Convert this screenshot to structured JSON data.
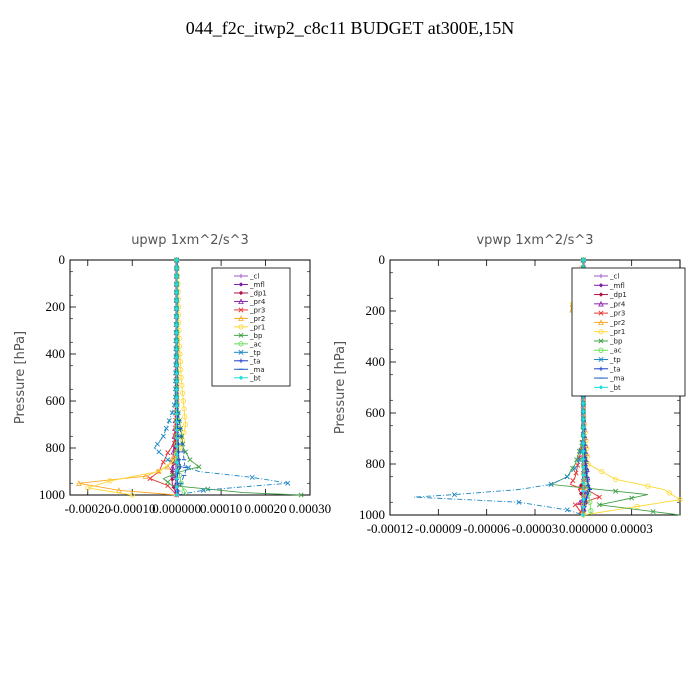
{
  "page": {
    "title": "044_f2c_itwp2_c8c11  BUDGET at300E,15N"
  },
  "legend": [
    {
      "label": "_cl",
      "color": "#9b59c6",
      "marker": "plus"
    },
    {
      "label": "_mfl",
      "color": "#7b1fa2",
      "marker": "diamond"
    },
    {
      "label": "_dp1",
      "color": "#b0124a",
      "marker": "diamond"
    },
    {
      "label": "_pr4",
      "color": "#8e24aa",
      "marker": "tri"
    },
    {
      "label": "_pr3",
      "color": "#e53935",
      "marker": "x"
    },
    {
      "label": "_pr2",
      "color": "#f9a825",
      "marker": "tri"
    },
    {
      "label": "_pr1",
      "color": "#fdd835",
      "marker": "circle"
    },
    {
      "label": "_bp",
      "color": "#43a047",
      "marker": "x"
    },
    {
      "label": "_ac",
      "color": "#66dd55",
      "marker": "circle"
    },
    {
      "label": "_tp",
      "color": "#1e88c5",
      "marker": "x"
    },
    {
      "label": "_ta",
      "color": "#1a3fcc",
      "marker": "plus"
    },
    {
      "label": "_ma",
      "color": "#1e5fc5",
      "marker": "line"
    },
    {
      "label": "_bt",
      "color": "#22dddd",
      "marker": "diamond"
    }
  ],
  "chart_data": [
    {
      "type": "line",
      "title": "upwp   1xm^2/s^3",
      "ylabel": "Pressure [hPa]",
      "xlabel": "",
      "xlim": [
        -0.00024,
        0.0003
      ],
      "ylim": [
        1000,
        0
      ],
      "xticks": [
        -0.0002,
        -0.0001,
        0.0,
        0.0001,
        0.0002,
        0.0003
      ],
      "xtick_labels": [
        "-0.00020",
        "-0.00010",
        "0.000000",
        "0.00010",
        "0.00020",
        "0.00030"
      ],
      "yticks": [
        0,
        200,
        400,
        600,
        800,
        1000
      ],
      "ytick_labels": [
        "0",
        "200",
        "400",
        "600",
        "800",
        "1000"
      ],
      "legend_position": "top-right",
      "series": [
        {
          "name": "_cl",
          "p": [
            0,
            200,
            400,
            600,
            800,
            950,
            1000
          ],
          "v": [
            0,
            0,
            0,
            0,
            0,
            0,
            0
          ]
        },
        {
          "name": "_mfl",
          "p": [
            0,
            200,
            400,
            600,
            800,
            950,
            1000
          ],
          "v": [
            0,
            0,
            0,
            0,
            0,
            0,
            0
          ]
        },
        {
          "name": "_dp1",
          "p": [
            0,
            400,
            700,
            850,
            900,
            950,
            1000
          ],
          "v": [
            0,
            0,
            0,
            -5e-06,
            -1e-05,
            -1e-05,
            0
          ]
        },
        {
          "name": "_pr4",
          "p": [
            0,
            600,
            900,
            950,
            1000
          ],
          "v": [
            0,
            0,
            -1e-05,
            0,
            0
          ]
        },
        {
          "name": "_pr3",
          "p": [
            0,
            600,
            780,
            820,
            860,
            900,
            930,
            960,
            980,
            1000
          ],
          "v": [
            0,
            0,
            -5e-06,
            -2e-05,
            -3e-05,
            -4e-05,
            -6e-05,
            -2e-05,
            -1e-05,
            0
          ]
        },
        {
          "name": "_pr2",
          "p": [
            0,
            600,
            800,
            880,
            920,
            950,
            980,
            1000
          ],
          "v": [
            0,
            0,
            3e-06,
            -2e-05,
            -7e-05,
            -0.00022,
            -0.00013,
            0
          ]
        },
        {
          "name": "_pr1",
          "p": [
            0,
            100,
            300,
            500,
            700,
            800,
            860,
            900,
            940,
            970,
            1000
          ],
          "v": [
            0,
            3e-06,
            5e-06,
            1e-05,
            2e-05,
            1e-05,
            -1e-05,
            -4e-05,
            -0.00015,
            -0.0002,
            -0.0001
          ]
        },
        {
          "name": "_bp",
          "p": [
            0,
            600,
            800,
            850,
            880,
            900,
            930,
            960,
            990,
            1000
          ],
          "v": [
            0,
            0,
            1.5e-05,
            3e-05,
            5e-05,
            1e-05,
            -3e-05,
            -1e-05,
            0.00015,
            0.00028
          ]
        },
        {
          "name": "_ac",
          "p": [
            0,
            800,
            900,
            950,
            1000
          ],
          "v": [
            0,
            0,
            5e-06,
            1e-05,
            2e-05
          ]
        },
        {
          "name": "_tp",
          "p": [
            0,
            600,
            650,
            700,
            750,
            800,
            850,
            900,
            925,
            940,
            950,
            965,
            980,
            1000
          ],
          "v": [
            0,
            -3e-06,
            -1e-05,
            -2e-05,
            -3e-05,
            -5e-05,
            -2e-05,
            5e-05,
            0.00017,
            0.00022,
            0.00025,
            0.00015,
            6e-05,
            0
          ]
        },
        {
          "name": "_ta",
          "p": [
            0,
            600,
            850,
            880,
            910,
            950,
            1000
          ],
          "v": [
            0,
            0,
            5e-06,
            8e-06,
            2e-06,
            0,
            0
          ]
        },
        {
          "name": "_ma",
          "p": [
            0,
            600,
            900,
            950,
            1000
          ],
          "v": [
            0,
            0,
            2e-05,
            1e-05,
            0
          ]
        },
        {
          "name": "_bt",
          "p": [
            0,
            500,
            1000
          ],
          "v": [
            0,
            0,
            0
          ]
        }
      ]
    },
    {
      "type": "line",
      "title": "vpwp   1xm^2/s^3",
      "ylabel": "Pressure [hPa]",
      "xlabel": "",
      "xlim": [
        -0.00012,
        6e-05
      ],
      "ylim": [
        1000,
        0
      ],
      "xticks": [
        -0.00012,
        -9e-05,
        -6e-05,
        -3e-05,
        0.0,
        3e-05
      ],
      "xtick_labels": [
        "-0.00012",
        "-0.00009",
        "-0.00006",
        "-0.00003",
        "0.000000",
        "0.00003"
      ],
      "yticks": [
        0,
        200,
        400,
        600,
        800,
        1000
      ],
      "ytick_labels": [
        "0",
        "200",
        "400",
        "600",
        "800",
        "1000"
      ],
      "legend_position": "top-right",
      "series": [
        {
          "name": "_cl",
          "p": [
            0,
            200,
            400,
            600,
            800,
            950,
            1000
          ],
          "v": [
            0,
            0,
            0,
            0,
            0,
            0,
            0
          ]
        },
        {
          "name": "_mfl",
          "p": [
            0,
            200,
            400,
            600,
            800,
            950,
            1000
          ],
          "v": [
            0,
            0,
            0,
            0,
            0,
            0,
            0
          ]
        },
        {
          "name": "_dp1",
          "p": [
            0,
            600,
            850,
            900,
            950,
            1000
          ],
          "v": [
            0,
            0,
            2e-06,
            -3e-06,
            2e-06,
            0
          ]
        },
        {
          "name": "_pr4",
          "p": [
            0,
            600,
            900,
            950,
            1000
          ],
          "v": [
            0,
            0,
            3e-06,
            -2e-06,
            0
          ]
        },
        {
          "name": "_pr3",
          "p": [
            0,
            700,
            850,
            880,
            910,
            930,
            960,
            1000
          ],
          "v": [
            0,
            0,
            -5e-06,
            -8e-06,
            5e-06,
            1e-05,
            -5e-06,
            0
          ]
        },
        {
          "name": "_pr2",
          "p": [
            0,
            100,
            150,
            180,
            210,
            250,
            400,
            600,
            800,
            1000
          ],
          "v": [
            0,
            0,
            -3e-06,
            -8e-06,
            -6e-06,
            -2e-06,
            0,
            0,
            0,
            0
          ]
        },
        {
          "name": "_pr1",
          "p": [
            0,
            150,
            170,
            200,
            230,
            600,
            800,
            860,
            900,
            940,
            980,
            1000
          ],
          "v": [
            0,
            -5e-06,
            -8e-06,
            -4e-06,
            0,
            0,
            3e-06,
            2e-05,
            5e-05,
            6e-05,
            2e-05,
            0
          ]
        },
        {
          "name": "_bp",
          "p": [
            0,
            700,
            800,
            850,
            880,
            920,
            960,
            1000
          ],
          "v": [
            0,
            0,
            -5e-06,
            -1e-05,
            -2e-05,
            4e-05,
            1e-05,
            6e-05
          ]
        },
        {
          "name": "_ac",
          "p": [
            0,
            800,
            900,
            1000
          ],
          "v": [
            0,
            0,
            3e-06,
            5e-06
          ]
        },
        {
          "name": "_tp",
          "p": [
            0,
            700,
            800,
            850,
            880,
            900,
            920,
            930,
            950,
            980,
            1000
          ],
          "v": [
            0,
            0,
            -3e-06,
            -1e-05,
            -2e-05,
            -4e-05,
            -8e-05,
            -0.000105,
            -4e-05,
            -1e-05,
            0
          ]
        },
        {
          "name": "_ta",
          "p": [
            0,
            700,
            850,
            900,
            950,
            1000
          ],
          "v": [
            0,
            0,
            2e-06,
            4e-06,
            1e-06,
            0
          ]
        },
        {
          "name": "_ma",
          "p": [
            0,
            600,
            900,
            950,
            1000
          ],
          "v": [
            0,
            0,
            3e-06,
            1e-06,
            0
          ]
        },
        {
          "name": "_bt",
          "p": [
            0,
            500,
            1000
          ],
          "v": [
            0,
            0,
            0
          ]
        }
      ]
    }
  ]
}
